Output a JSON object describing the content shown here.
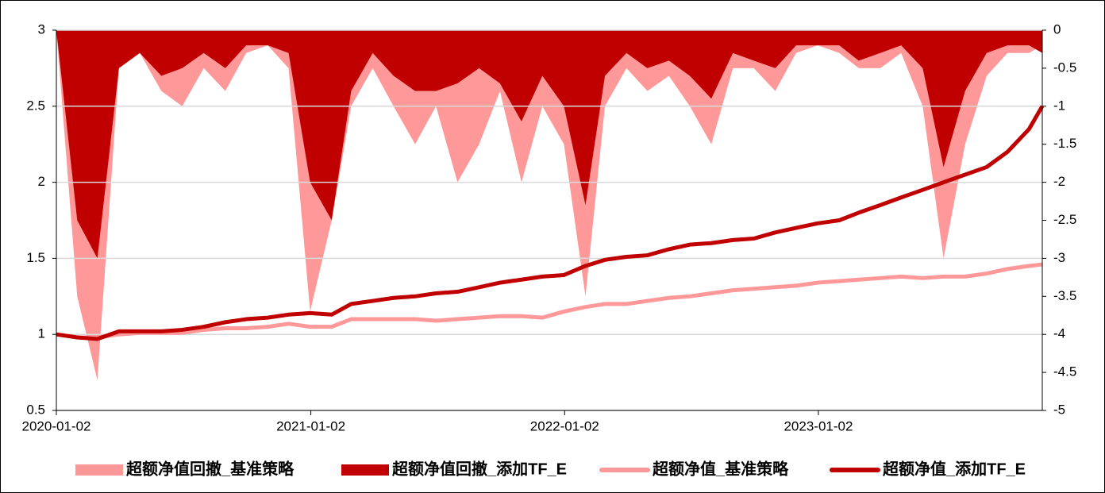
{
  "chart_data": {
    "type": "combo",
    "x": [
      "2020-01-02",
      "2020-02-01",
      "2020-03-01",
      "2020-04-01",
      "2020-05-01",
      "2020-06-01",
      "2020-07-01",
      "2020-08-01",
      "2020-09-01",
      "2020-10-01",
      "2020-11-01",
      "2020-12-01",
      "2021-01-01",
      "2021-02-01",
      "2021-03-01",
      "2021-04-01",
      "2021-05-01",
      "2021-06-01",
      "2021-07-01",
      "2021-08-01",
      "2021-09-01",
      "2021-10-01",
      "2021-11-01",
      "2021-12-01",
      "2022-01-01",
      "2022-02-01",
      "2022-03-01",
      "2022-04-01",
      "2022-05-01",
      "2022-06-01",
      "2022-07-01",
      "2022-08-01",
      "2022-09-01",
      "2022-10-01",
      "2022-11-01",
      "2022-12-01",
      "2023-01-01",
      "2023-02-01",
      "2023-03-01",
      "2023-04-01",
      "2023-05-01",
      "2023-06-01",
      "2023-07-01",
      "2023-08-01",
      "2023-09-01",
      "2023-10-01",
      "2023-11-01",
      "2023-11-20"
    ],
    "xlim": [
      "2020-01-02",
      "2023-11-20"
    ],
    "xticks": [
      "2020-01-02",
      "2021-01-02",
      "2022-01-02",
      "2023-01-02"
    ],
    "ylim": [
      0.5,
      3
    ],
    "yticks": [
      0.5,
      1,
      1.5,
      2,
      2.5,
      3
    ],
    "y2lim": [
      -5,
      0
    ],
    "y2ticks": [
      -5,
      -4.5,
      -4,
      -3.5,
      -3,
      -2.5,
      -2,
      -1.5,
      -1,
      -0.5,
      0
    ],
    "grid": true,
    "series": [
      {
        "name": "超额净值回撤_基准策略",
        "type": "area",
        "axis": "y2",
        "color": "#ff9999",
        "values": [
          0,
          -3.5,
          -4.6,
          -0.5,
          -0.3,
          -0.8,
          -1.0,
          -0.5,
          -0.8,
          -0.3,
          -0.2,
          -0.5,
          -3.7,
          -2.5,
          -1.0,
          -0.5,
          -1.0,
          -1.5,
          -1.0,
          -2.0,
          -1.5,
          -0.8,
          -2.0,
          -1.0,
          -1.5,
          -3.5,
          -1.0,
          -0.5,
          -0.8,
          -0.6,
          -1.0,
          -1.5,
          -0.5,
          -0.5,
          -0.8,
          -0.3,
          -0.2,
          -0.3,
          -0.5,
          -0.5,
          -0.3,
          -1.0,
          -3.0,
          -1.5,
          -0.6,
          -0.3,
          -0.3,
          -0.2
        ]
      },
      {
        "name": "超额净值回撤_添加TF_E",
        "type": "area",
        "axis": "y2",
        "color": "#c00000",
        "values": [
          0,
          -2.5,
          -3.0,
          -0.5,
          -0.3,
          -0.6,
          -0.5,
          -0.3,
          -0.5,
          -0.2,
          -0.2,
          -0.3,
          -2.0,
          -2.5,
          -0.8,
          -0.3,
          -0.6,
          -0.8,
          -0.8,
          -0.7,
          -0.5,
          -0.7,
          -1.2,
          -0.6,
          -1.0,
          -2.3,
          -0.6,
          -0.3,
          -0.5,
          -0.4,
          -0.6,
          -0.9,
          -0.3,
          -0.4,
          -0.5,
          -0.2,
          -0.2,
          -0.2,
          -0.4,
          -0.3,
          -0.2,
          -0.5,
          -1.8,
          -0.8,
          -0.3,
          -0.2,
          -0.2,
          -0.3
        ]
      },
      {
        "name": "超额净值_基准策略",
        "type": "line",
        "color": "#ff9999",
        "values": [
          1.0,
          0.98,
          0.98,
          1.0,
          1.01,
          1.01,
          1.01,
          1.03,
          1.04,
          1.04,
          1.05,
          1.07,
          1.05,
          1.05,
          1.1,
          1.1,
          1.1,
          1.1,
          1.09,
          1.1,
          1.11,
          1.12,
          1.12,
          1.11,
          1.15,
          1.18,
          1.2,
          1.2,
          1.22,
          1.24,
          1.25,
          1.27,
          1.29,
          1.3,
          1.31,
          1.32,
          1.34,
          1.35,
          1.36,
          1.37,
          1.38,
          1.37,
          1.38,
          1.38,
          1.4,
          1.43,
          1.45,
          1.46
        ]
      },
      {
        "name": "超额净值_添加TF_E",
        "type": "line",
        "color": "#c00000",
        "values": [
          1.0,
          0.98,
          0.97,
          1.02,
          1.02,
          1.02,
          1.03,
          1.05,
          1.08,
          1.1,
          1.11,
          1.13,
          1.14,
          1.13,
          1.2,
          1.22,
          1.24,
          1.25,
          1.27,
          1.28,
          1.31,
          1.34,
          1.36,
          1.38,
          1.39,
          1.45,
          1.49,
          1.51,
          1.52,
          1.56,
          1.59,
          1.6,
          1.62,
          1.63,
          1.67,
          1.7,
          1.73,
          1.75,
          1.8,
          1.85,
          1.9,
          1.95,
          2.0,
          2.05,
          2.1,
          2.2,
          2.35,
          2.5
        ]
      }
    ]
  }
}
